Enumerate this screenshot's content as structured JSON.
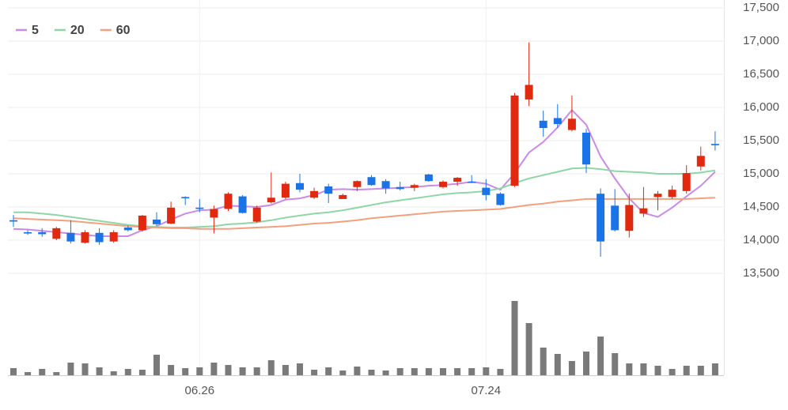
{
  "chart_data": {
    "type": "candlestick",
    "categories": [
      null,
      null,
      null,
      null,
      null,
      null,
      null,
      null,
      null,
      null,
      null,
      null,
      null,
      "06.26",
      null,
      null,
      null,
      null,
      null,
      null,
      null,
      null,
      null,
      null,
      null,
      null,
      null,
      null,
      null,
      null,
      null,
      null,
      null,
      "07.24",
      null,
      null,
      null,
      null,
      null,
      null,
      null,
      null,
      null,
      null,
      null,
      null,
      null,
      null,
      null,
      null
    ],
    "open": [
      14300,
      14120,
      14120,
      14020,
      14110,
      13960,
      14110,
      13980,
      14190,
      14150,
      14310,
      14250,
      14650,
      14490,
      14340,
      14470,
      14660,
      14280,
      14570,
      14640,
      14860,
      14640,
      14810,
      14620,
      14800,
      14950,
      14890,
      14800,
      14790,
      14990,
      14800,
      14880,
      14880,
      14790,
      14700,
      14820,
      16120,
      15800,
      15840,
      15660,
      15620,
      14700,
      14520,
      14140,
      14400,
      14650,
      14650,
      14740,
      15110,
      15450
    ],
    "high": [
      14380,
      14150,
      14180,
      14200,
      14300,
      14150,
      14180,
      14150,
      14220,
      14380,
      14420,
      14580,
      14660,
      14620,
      14520,
      14720,
      14680,
      14520,
      15020,
      14880,
      15000,
      14790,
      14850,
      14700,
      14900,
      14980,
      14920,
      14880,
      14850,
      15000,
      14900,
      14950,
      14980,
      14920,
      14720,
      16220,
      16980,
      15950,
      16050,
      16180,
      15680,
      14780,
      14770,
      14700,
      14800,
      14740,
      14820,
      15130,
      15410,
      15640
    ],
    "low": [
      14200,
      14080,
      14050,
      14000,
      13950,
      13950,
      13930,
      13960,
      14130,
      14130,
      14220,
      14240,
      14530,
      14420,
      14100,
      14440,
      14400,
      14260,
      14550,
      14620,
      14720,
      14620,
      14560,
      14620,
      14740,
      14820,
      14700,
      14750,
      14740,
      14880,
      14780,
      14820,
      14860,
      14600,
      14520,
      14800,
      16020,
      15560,
      15690,
      15640,
      15010,
      13750,
      14130,
      14040,
      14350,
      14450,
      14620,
      14700,
      15050,
      15350
    ],
    "close": [
      14280,
      14100,
      14090,
      14180,
      13980,
      14120,
      13970,
      14120,
      14150,
      14370,
      14240,
      14490,
      14630,
      14470,
      14470,
      14700,
      14410,
      14490,
      14640,
      14850,
      14760,
      14740,
      14700,
      14680,
      14890,
      14830,
      14780,
      14770,
      14830,
      14890,
      14880,
      14940,
      14870,
      14680,
      14530,
      16180,
      16340,
      15690,
      15750,
      15830,
      15140,
      13980,
      14150,
      14530,
      14480,
      14700,
      14760,
      15010,
      15270,
      15430
    ],
    "up_color": "#e0290f",
    "down_color": "#1a74e8",
    "series": [
      {
        "name": "5",
        "color": "#c98ae8",
        "values": [
          14170,
          14160,
          14140,
          14120,
          14100,
          14080,
          14060,
          14060,
          14060,
          14150,
          14210,
          14310,
          14400,
          14450,
          14460,
          14520,
          14510,
          14500,
          14530,
          14610,
          14630,
          14680,
          14760,
          14770,
          14760,
          14770,
          14780,
          14790,
          14800,
          14820,
          14830,
          14850,
          14880,
          14850,
          14760,
          15010,
          15320,
          15480,
          15700,
          15960,
          15740,
          15260,
          14930,
          14630,
          14410,
          14350,
          14490,
          14660,
          14820,
          15030
        ]
      },
      {
        "name": "20",
        "color": "#8fd6a6",
        "values": [
          14420,
          14420,
          14400,
          14380,
          14350,
          14320,
          14290,
          14260,
          14230,
          14210,
          14200,
          14190,
          14190,
          14200,
          14210,
          14240,
          14250,
          14270,
          14300,
          14340,
          14370,
          14400,
          14420,
          14450,
          14490,
          14530,
          14570,
          14600,
          14630,
          14660,
          14690,
          14710,
          14720,
          14740,
          14780,
          14860,
          14930,
          14980,
          15030,
          15080,
          15090,
          15070,
          15040,
          15030,
          15020,
          15000,
          15000,
          15000,
          15020,
          15050
        ]
      },
      {
        "name": "60",
        "color": "#f2a07e",
        "values": [
          14330,
          14320,
          14310,
          14300,
          14290,
          14270,
          14250,
          14230,
          14210,
          14200,
          14190,
          14180,
          14180,
          14170,
          14170,
          14170,
          14180,
          14190,
          14200,
          14210,
          14230,
          14250,
          14260,
          14280,
          14300,
          14330,
          14350,
          14370,
          14390,
          14410,
          14430,
          14440,
          14450,
          14460,
          14470,
          14500,
          14530,
          14550,
          14580,
          14600,
          14620,
          14620,
          14620,
          14620,
          14620,
          14620,
          14620,
          14620,
          14630,
          14640
        ]
      }
    ],
    "volume": [
      9,
      4,
      8,
      4,
      16,
      15,
      10,
      5,
      8,
      7,
      26,
      13,
      9,
      10,
      16,
      13,
      10,
      10,
      19,
      13,
      15,
      7,
      10,
      6,
      11,
      7,
      6,
      9,
      9,
      9,
      9,
      9,
      9,
      10,
      8,
      94,
      66,
      35,
      27,
      18,
      30,
      49,
      28,
      15,
      15,
      12,
      8,
      12,
      12,
      15
    ],
    "volume_color": "#7a7a7a",
    "vlim": [
      0,
      100
    ],
    "ylim": [
      13500,
      17500
    ],
    "yticks": [
      {
        "value": 13500,
        "label": "13,500"
      },
      {
        "value": 14000,
        "label": "14,000"
      },
      {
        "value": 14500,
        "label": "14,500"
      },
      {
        "value": 15000,
        "label": "15,000"
      },
      {
        "value": 15500,
        "label": "15,500"
      },
      {
        "value": 16000,
        "label": "16,000"
      },
      {
        "value": 16500,
        "label": "16,500"
      },
      {
        "value": 17000,
        "label": "17,000"
      },
      {
        "value": 17500,
        "label": "17,500"
      }
    ],
    "grid": true
  }
}
